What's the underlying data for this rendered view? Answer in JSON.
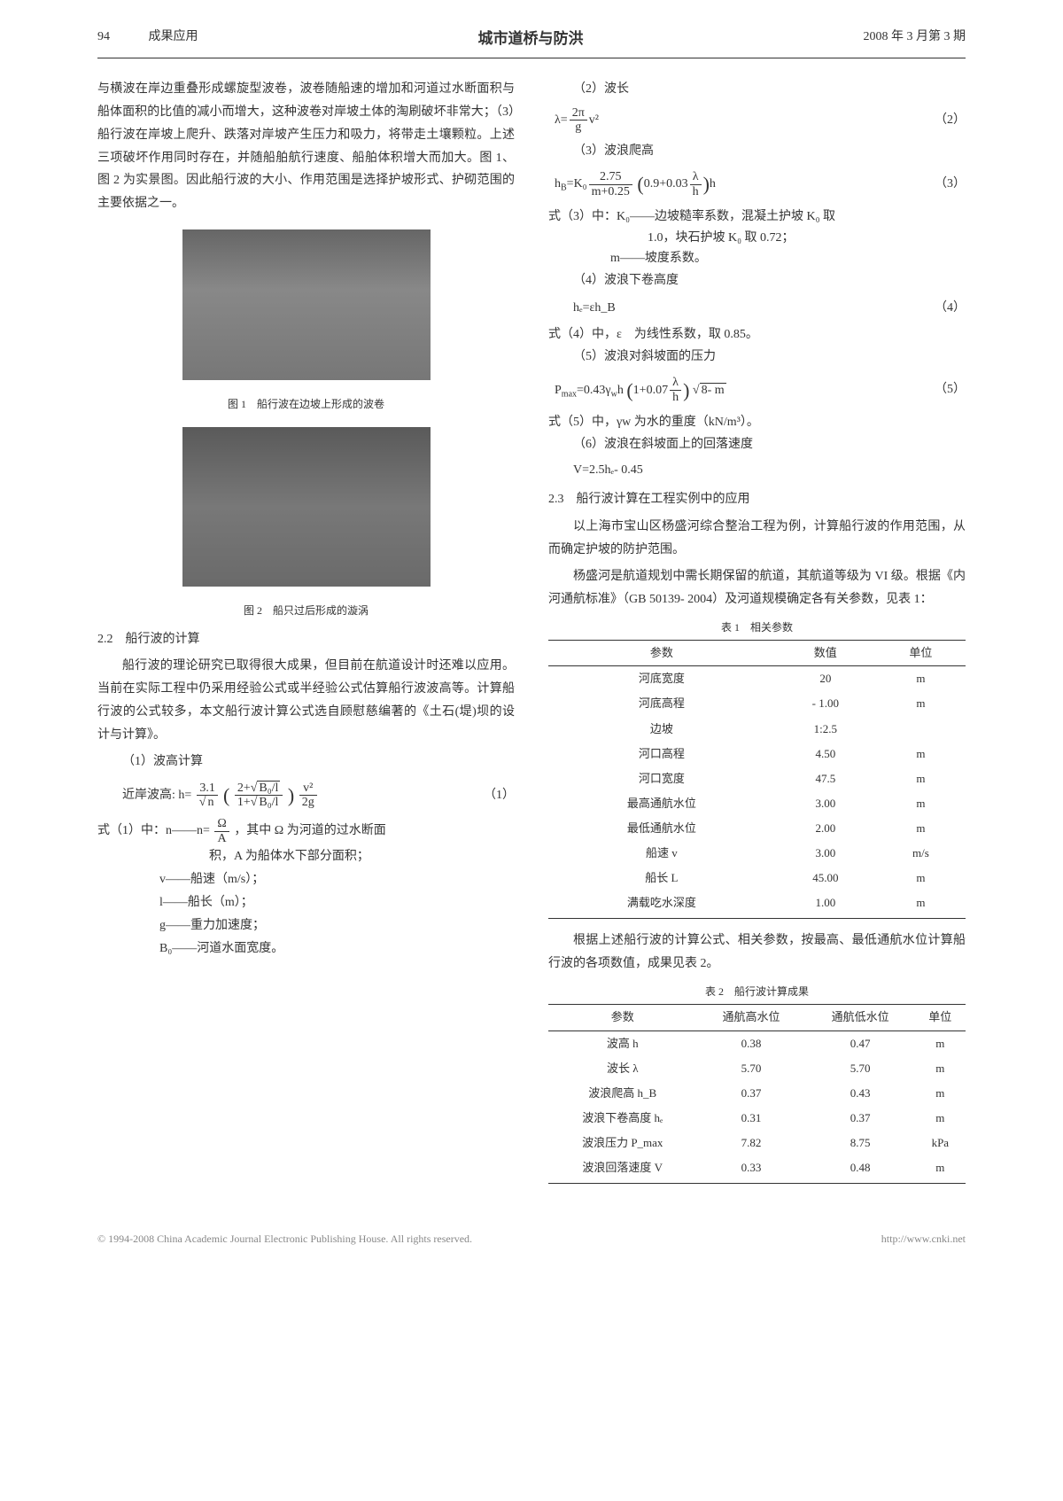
{
  "header": {
    "left_page": "94",
    "left_label": "成果应用",
    "center": "城市道桥与防洪",
    "right": "2008 年 3 月第 3 期"
  },
  "left_col": {
    "para1": "与横波在岸边重叠形成螺旋型波卷，波卷随船速的增加和河道过水断面积与船体面积的比值的减小而增大，这种波卷对岸坡土体的淘刷破坏非常大；（3）船行波在岸坡上爬升、跌落对岸坡产生压力和吸力，将带走土壤颗粒。上述三项破坏作用同时存在，并随船舶航行速度、船舶体积增大而加大。图 1、图 2 为实景图。因此船行波的大小、作用范围是选择护坡形式、护砌范围的主要依据之一。",
    "fig1_caption": "图 1　船行波在边坡上形成的波卷",
    "fig2_caption": "图 2　船只过后形成的漩涡",
    "sec22": "2.2　船行波的计算",
    "para22": "船行波的理论研究已取得很大成果，但目前在航道设计时还难以应用。当前在实际工程中仍采用经验公式或半经验公式估算船行波波高等。计算船行波的公式较多，本文船行波计算公式选自顾慰慈编著的《土石(堤)坝的设计与计算》。",
    "item1_title": "（1）波高计算",
    "nearshore_label": "近岸波高: h=",
    "eq1_num": "（1）",
    "desc1_first": "式（1）中：n——n=",
    "desc1_rest": "，其中 Ω 为河道的过水断面",
    "desc1_line2": "积，A 为船体水下部分面积；",
    "desc_v": "v——船速（m/s）；",
    "desc_l": "l——船长（m）；",
    "desc_g": "g——重力加速度；",
    "desc_B0": "B₀——河道水面宽度。"
  },
  "right_col": {
    "item2_title": "（2）波长",
    "eq2_num": "（2）",
    "item3_title": "（3）波浪爬高",
    "eq3_num": "（3）",
    "desc3_line1": "式（3）中：K₀——边坡糙率系数，混凝土护坡 K₀ 取",
    "desc3_line1b": "1.0，块石护坡 K₀ 取 0.72；",
    "desc3_line2": "m——坡度系数。",
    "item4_title": "（4）波浪下卷高度",
    "eq4_body": "hₑ=εh_B",
    "eq4_num": "（4）",
    "desc4": "式（4）中，ε　为线性系数，取 0.85。",
    "item5_title": "（5）波浪对斜坡面的压力",
    "eq5_num": "（5）",
    "desc5": "式（5）中，γw 为水的重度（kN/m³）。",
    "item6_title": "（6）波浪在斜坡面上的回落速度",
    "eq6_body": "V=2.5hₑ- 0.45",
    "sec23": "2.3　船行波计算在工程实例中的应用",
    "para23a": "以上海市宝山区杨盛河综合整治工程为例，计算船行波的作用范围，从而确定护坡的防护范围。",
    "para23b": "杨盛河是航道规划中需长期保留的航道，其航道等级为 VI 级。根据《内河通航标准》（GB 50139- 2004）及河道规模确定各有关参数，见表 1：",
    "table1_caption": "表 1　相关参数",
    "table1": {
      "columns": [
        "参数",
        "数值",
        "单位"
      ],
      "rows": [
        [
          "河底宽度",
          "20",
          "m"
        ],
        [
          "河底高程",
          "- 1.00",
          "m"
        ],
        [
          "边坡",
          "1:2.5",
          ""
        ],
        [
          "河口高程",
          "4.50",
          "m"
        ],
        [
          "河口宽度",
          "47.5",
          "m"
        ],
        [
          "最高通航水位",
          "3.00",
          "m"
        ],
        [
          "最低通航水位",
          "2.00",
          "m"
        ],
        [
          "船速 v",
          "3.00",
          "m/s"
        ],
        [
          "船长 L",
          "45.00",
          "m"
        ],
        [
          "满载吃水深度",
          "1.00",
          "m"
        ]
      ]
    },
    "para_after_t1": "根据上述船行波的计算公式、相关参数，按最高、最低通航水位计算船行波的各项数值，成果见表 2。",
    "table2_caption": "表 2　船行波计算成果",
    "table2": {
      "columns": [
        "参数",
        "通航高水位",
        "通航低水位",
        "单位"
      ],
      "rows": [
        [
          "波高 h",
          "0.38",
          "0.47",
          "m"
        ],
        [
          "波长 λ",
          "5.70",
          "5.70",
          "m"
        ],
        [
          "波浪爬高 h_B",
          "0.37",
          "0.43",
          "m"
        ],
        [
          "波浪下卷高度 hₑ",
          "0.31",
          "0.37",
          "m"
        ],
        [
          "波浪压力 P_max",
          "7.82",
          "8.75",
          "kPa"
        ],
        [
          "波浪回落速度 V",
          "0.33",
          "0.48",
          "m"
        ]
      ]
    }
  },
  "footer": {
    "left": "© 1994-2008 China Academic Journal Electronic Publishing House. All rights reserved.",
    "right": "http://www.cnki.net"
  }
}
